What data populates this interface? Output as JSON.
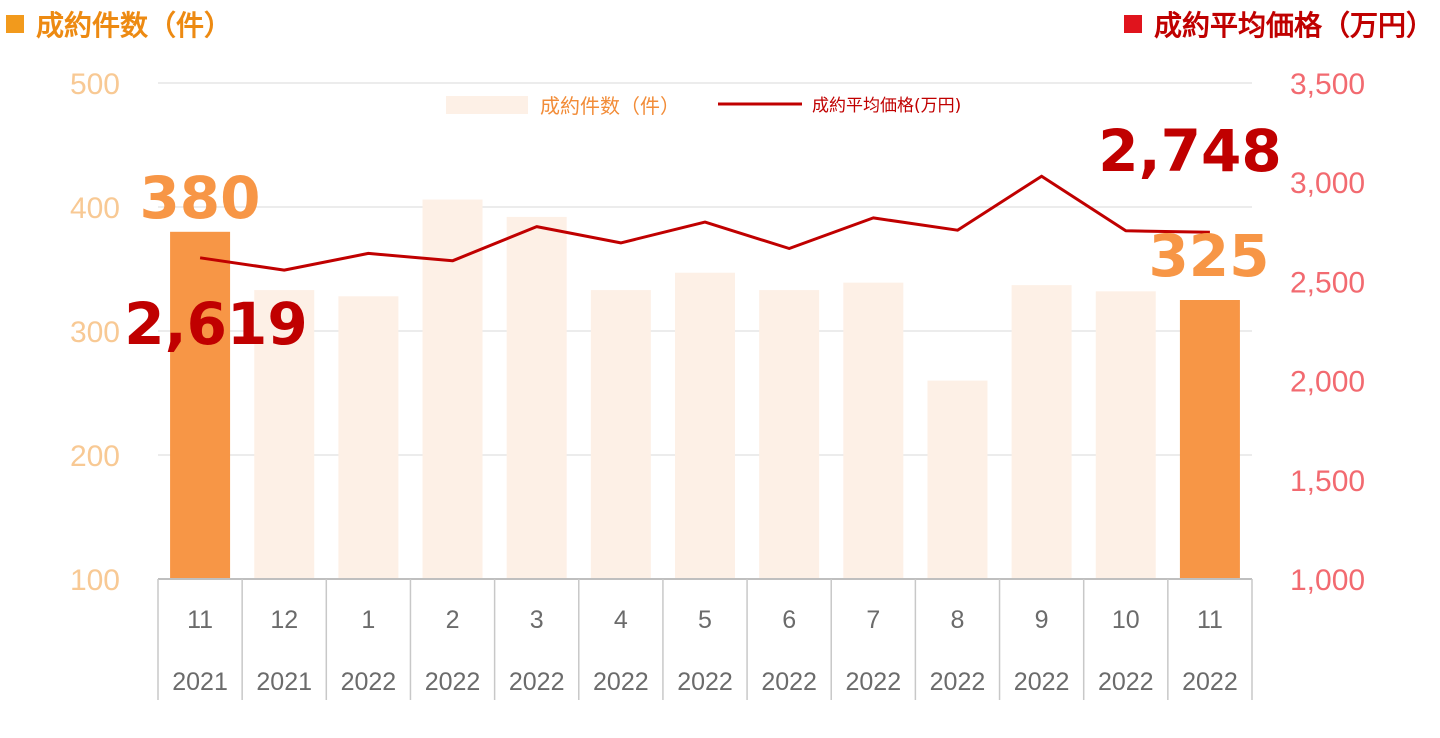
{
  "header_left": "成約件数（件）",
  "header_right": "成約平均価格（万円）",
  "colors": {
    "bar_highlight": "#f79646",
    "bar_faded": "#fdf0e6",
    "line": "#c00000",
    "left_axis": "#f8c994",
    "right_axis": "#f26a70",
    "grid": "#d9d9d9"
  },
  "chart_data": {
    "type": "bar+line",
    "categories": [
      {
        "month": "11",
        "year": "2021"
      },
      {
        "month": "12",
        "year": "2021"
      },
      {
        "month": "1",
        "year": "2022"
      },
      {
        "month": "2",
        "year": "2022"
      },
      {
        "month": "3",
        "year": "2022"
      },
      {
        "month": "4",
        "year": "2022"
      },
      {
        "month": "5",
        "year": "2022"
      },
      {
        "month": "6",
        "year": "2022"
      },
      {
        "month": "7",
        "year": "2022"
      },
      {
        "month": "8",
        "year": "2022"
      },
      {
        "month": "9",
        "year": "2022"
      },
      {
        "month": "10",
        "year": "2022"
      },
      {
        "month": "11",
        "year": "2022"
      }
    ],
    "series": [
      {
        "name": "成約件数（件）",
        "type": "bar",
        "axis": "left",
        "values": [
          380,
          333,
          328,
          406,
          392,
          333,
          347,
          333,
          339,
          260,
          337,
          332,
          325
        ],
        "highlight": [
          true,
          false,
          false,
          false,
          false,
          false,
          false,
          false,
          false,
          false,
          false,
          false,
          true
        ]
      },
      {
        "name": "成約平均価格(万円)",
        "type": "line",
        "axis": "right",
        "values": [
          2619,
          2557,
          2641,
          2604,
          2776,
          2694,
          2799,
          2666,
          2820,
          2758,
          3030,
          2755,
          2748
        ]
      }
    ],
    "left_axis": {
      "min": 100,
      "max": 500,
      "ticks": [
        "500",
        "400",
        "300",
        "200",
        "100"
      ]
    },
    "right_axis": {
      "min": 1000,
      "max": 3500,
      "ticks": [
        "3,500",
        "3,000",
        "2,500",
        "2,000",
        "1,500",
        "1,000"
      ]
    },
    "gridlines": true,
    "legend_position": "top-center",
    "callouts": {
      "first_bar": "380",
      "first_line": "2,619",
      "last_bar": "325",
      "last_line": "2,748"
    }
  }
}
